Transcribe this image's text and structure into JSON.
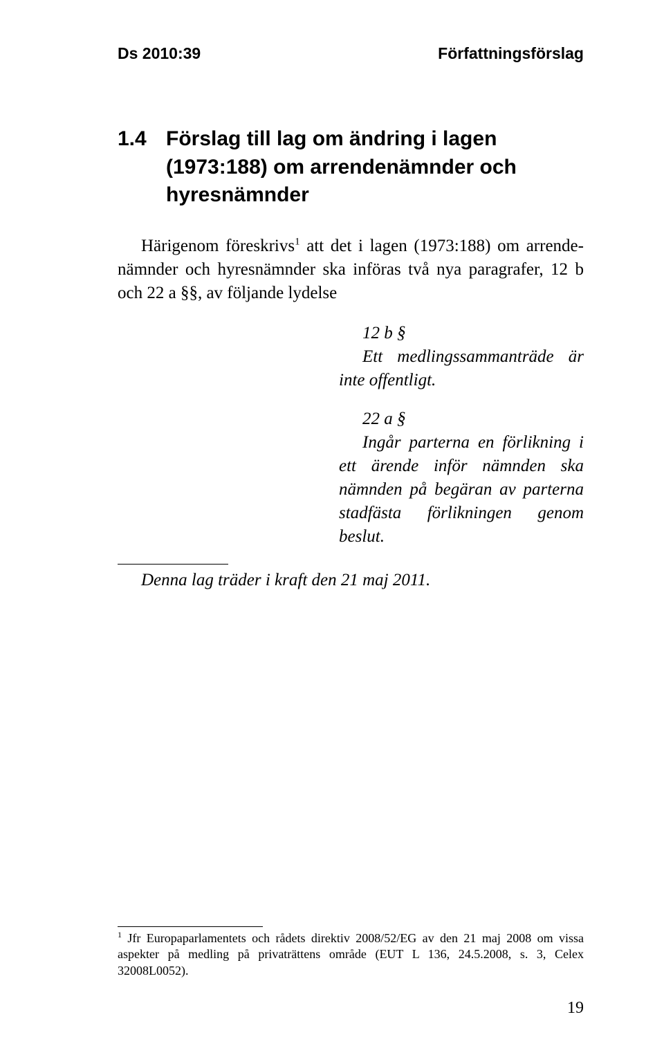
{
  "header": {
    "left": "Ds 2010:39",
    "right": "Författningsförslag"
  },
  "section": {
    "number": "1.4",
    "title": "Förslag till lag om ändring i lagen (1973:188) om arrendenämnder och hyresnämnder"
  },
  "intro": "Härigenom föreskrivs¹ att det i lagen (1973:188) om arrendenämnder och hyresnämnder ska införas två nya paragrafer, 12 b och 22 a §§, av följande lydelse",
  "provisions": [
    {
      "label": "12 b §",
      "text": "Ett medlingssammanträde är inte offentligt."
    },
    {
      "label": "22 a §",
      "text": "Ingår parterna en förlikning i ett ärende inför nämnden ska nämnden på begäran av parterna stadfästa förlikningen genom beslut."
    }
  ],
  "effective": "Denna lag träder i kraft den 21 maj 2011.",
  "footnote": {
    "marker": "1",
    "text": "Jfr Europaparlamentets och rådets direktiv 2008/52/EG av den 21 maj 2008 om vissa aspekter på medling på privaträttens område (EUT L 136, 24.5.2008, s. 3, Celex 32008L0052)."
  },
  "pageNumber": "19"
}
